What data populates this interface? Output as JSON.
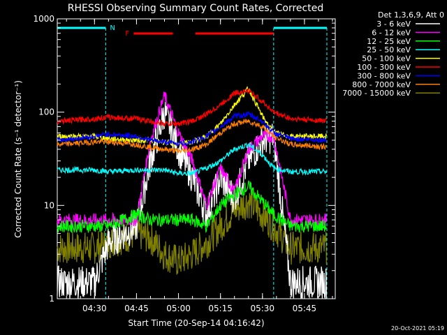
{
  "chart_data": {
    "type": "line",
    "title": "RHESSI Observing Summary Count Rates, Corrected",
    "xlabel": "Start Time (20-Sep-14 04:16:42)",
    "ylabel": "Corrected Count Rate (s⁻¹ detector⁻¹)",
    "yscale": "log",
    "xlim": [
      "04:16:42",
      "05:56:00"
    ],
    "ylim": [
      1,
      1000
    ],
    "x_ticks": [
      "04:30",
      "04:45",
      "05:00",
      "05:15",
      "05:30",
      "05:45"
    ],
    "y_ticks": [
      "1",
      "10",
      "100",
      "1000"
    ],
    "legend_title": "Det 1,3,6,9, Att 0",
    "legend_position": "right",
    "annotations": {
      "night_marker": "N",
      "flare_marker": "F"
    },
    "footer": "20-Oct-2021 05:19",
    "grid": false,
    "series": [
      {
        "name": "3 - 6 keV",
        "color": "#ffffff",
        "x": [
          "04:17",
          "04:30",
          "04:35",
          "04:45",
          "04:50",
          "04:55",
          "05:00",
          "05:05",
          "05:10",
          "05:15",
          "05:20",
          "05:25",
          "05:30",
          "05:34",
          "05:40",
          "05:55"
        ],
        "values": [
          1.5,
          1.5,
          4,
          6,
          30,
          100,
          40,
          20,
          8,
          20,
          12,
          30,
          50,
          55,
          1.5,
          1.5
        ]
      },
      {
        "name": "6 - 12 keV",
        "color": "#ff00ff",
        "x": [
          "04:17",
          "04:30",
          "04:35",
          "04:45",
          "04:50",
          "04:55",
          "05:00",
          "05:05",
          "05:10",
          "05:15",
          "05:20",
          "05:25",
          "05:30",
          "05:34",
          "05:40",
          "05:55"
        ],
        "values": [
          7,
          7,
          7,
          7,
          50,
          150,
          60,
          30,
          10,
          25,
          14,
          40,
          55,
          55,
          7,
          7
        ]
      },
      {
        "name": "12 - 25 keV",
        "color": "#00ff00",
        "x": [
          "04:17",
          "04:30",
          "04:35",
          "04:45",
          "04:50",
          "04:55",
          "05:00",
          "05:05",
          "05:10",
          "05:15",
          "05:20",
          "05:25",
          "05:30",
          "05:34",
          "05:40",
          "05:55"
        ],
        "values": [
          6,
          6,
          6,
          8,
          7,
          7,
          7,
          7,
          6,
          10,
          13,
          16,
          11,
          8,
          6,
          6
        ]
      },
      {
        "name": "25 - 50 keV",
        "color": "#00ffff",
        "x": [
          "04:17",
          "04:30",
          "04:35",
          "04:45",
          "04:50",
          "04:55",
          "05:00",
          "05:05",
          "05:10",
          "05:15",
          "05:20",
          "05:25",
          "05:30",
          "05:34",
          "05:40",
          "05:55"
        ],
        "values": [
          24,
          24,
          23,
          24,
          24,
          24,
          22,
          22,
          25,
          30,
          40,
          45,
          35,
          25,
          23,
          23
        ]
      },
      {
        "name": "50 - 100 keV",
        "color": "#ffff00",
        "x": [
          "04:17",
          "04:30",
          "04:35",
          "04:45",
          "04:50",
          "04:55",
          "05:00",
          "05:05",
          "05:10",
          "05:15",
          "05:20",
          "05:25",
          "05:30",
          "05:34",
          "05:40",
          "05:55"
        ],
        "values": [
          55,
          55,
          52,
          50,
          50,
          48,
          45,
          48,
          55,
          75,
          120,
          180,
          90,
          60,
          55,
          55
        ]
      },
      {
        "name": "100 - 300 keV",
        "color": "#ff0000",
        "x": [
          "04:17",
          "04:30",
          "04:35",
          "04:45",
          "04:50",
          "04:55",
          "05:00",
          "05:05",
          "05:10",
          "05:15",
          "05:20",
          "05:25",
          "05:30",
          "05:34",
          "05:40",
          "05:55"
        ],
        "values": [
          80,
          85,
          88,
          85,
          80,
          75,
          75,
          80,
          95,
          120,
          160,
          170,
          130,
          100,
          85,
          80
        ]
      },
      {
        "name": "300 - 800 keV",
        "color": "#0000ff",
        "x": [
          "04:17",
          "04:30",
          "04:35",
          "04:45",
          "04:50",
          "04:55",
          "05:00",
          "05:05",
          "05:10",
          "05:15",
          "05:20",
          "05:25",
          "05:30",
          "05:34",
          "05:40",
          "05:55"
        ],
        "values": [
          50,
          55,
          58,
          55,
          50,
          48,
          46,
          48,
          55,
          70,
          90,
          95,
          80,
          60,
          52,
          50
        ]
      },
      {
        "name": "800 - 7000 keV",
        "color": "#ff8000",
        "x": [
          "04:17",
          "04:30",
          "04:35",
          "04:45",
          "04:50",
          "04:55",
          "05:00",
          "05:05",
          "05:10",
          "05:15",
          "05:20",
          "05:25",
          "05:30",
          "05:34",
          "05:40",
          "05:55"
        ],
        "values": [
          45,
          48,
          48,
          45,
          42,
          40,
          38,
          40,
          45,
          60,
          75,
          80,
          70,
          55,
          45,
          42
        ]
      },
      {
        "name": "7000 - 15000 keV",
        "color": "#808000",
        "x": [
          "04:17",
          "04:30",
          "04:35",
          "04:45",
          "04:50",
          "04:55",
          "05:00",
          "05:05",
          "05:10",
          "05:15",
          "05:20",
          "05:25",
          "05:30",
          "05:34",
          "05:40",
          "05:55"
        ],
        "values": [
          3.5,
          3.5,
          4,
          5,
          4.5,
          3,
          2.5,
          3,
          4,
          6,
          9,
          11,
          8,
          6,
          3.5,
          3.5
        ]
      }
    ]
  }
}
